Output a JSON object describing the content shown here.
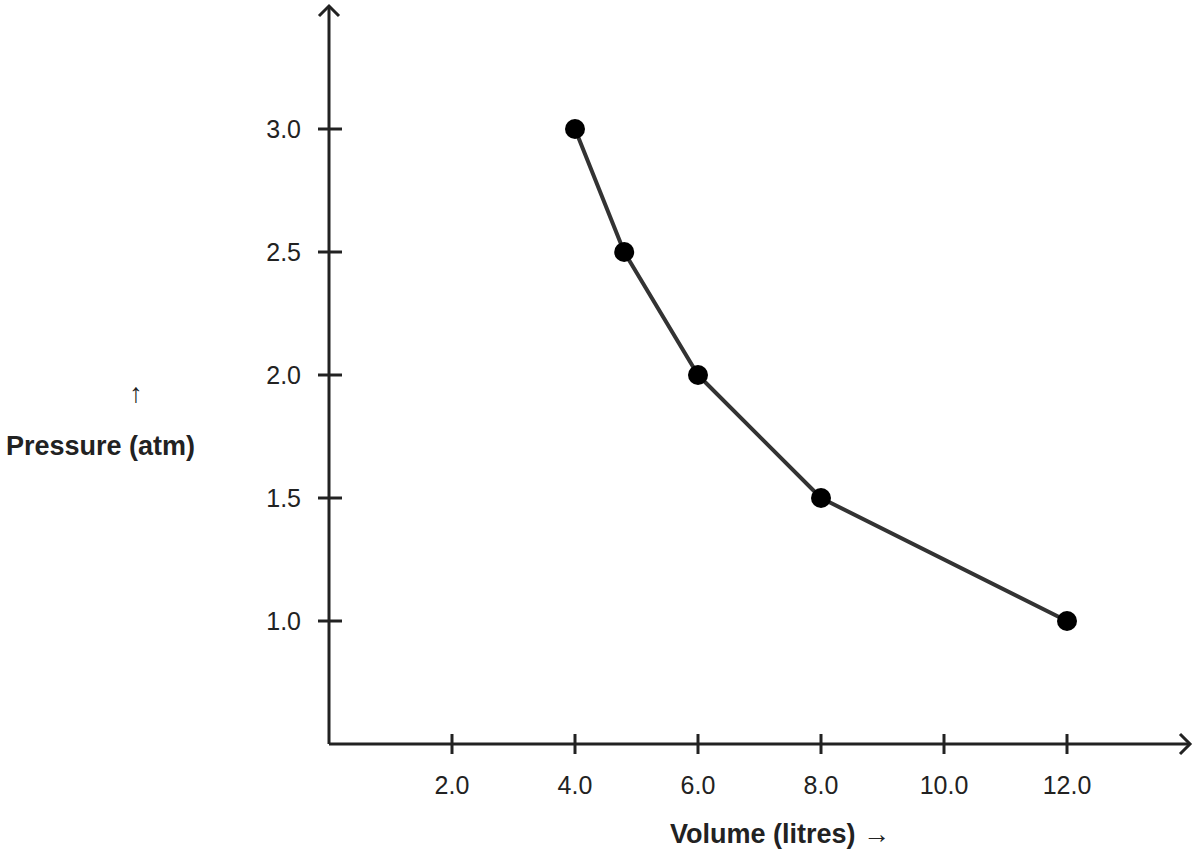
{
  "chart_data": {
    "type": "line",
    "x_label": "Volume (litres) →",
    "y_label": "Pressure (atm)",
    "y_label_arrow": "↑",
    "x": [
      4.0,
      4.8,
      6.0,
      8.0,
      12.0
    ],
    "values": [
      3.0,
      2.5,
      2.0,
      1.5,
      1.0
    ],
    "color": "#333333",
    "marker": "circle",
    "line_style": "solid",
    "grid": false,
    "xlim": [
      0,
      14
    ],
    "xticks": [
      {
        "value": 2,
        "label": "2.0"
      },
      {
        "value": 4,
        "label": "4.0"
      },
      {
        "value": 6,
        "label": "6.0"
      },
      {
        "value": 8,
        "label": "8.0"
      },
      {
        "value": 10,
        "label": "10.0"
      },
      {
        "value": 12,
        "label": "12.0"
      }
    ],
    "ylim": [
      0.5,
      3.5
    ],
    "yticks": [
      {
        "value": 1,
        "label": "1.0"
      },
      1.5,
      {
        "value": 2,
        "label": "2.0"
      },
      2.5,
      {
        "value": 3,
        "label": "3.0"
      }
    ]
  }
}
